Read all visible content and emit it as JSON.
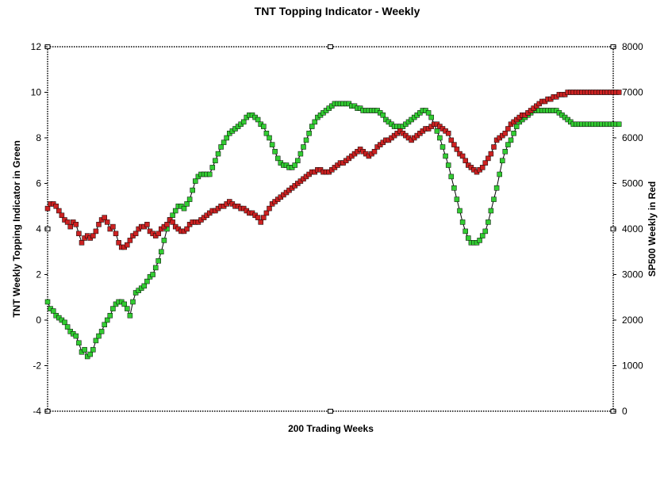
{
  "chart_data": {
    "type": "line",
    "title": "TNT Topping Indicator - Weekly",
    "xlabel": "200 Trading Weeks",
    "ylabel_left": "TNT Weekly Topping Indicator in Green",
    "ylabel_right": "SP500 Weekly in Red",
    "ylim_left": [
      -4,
      12
    ],
    "ylim_right": [
      0,
      8000
    ],
    "yticks_left": [
      12,
      10,
      8,
      6,
      4,
      2,
      0,
      -2,
      -4
    ],
    "yticks_right": [
      8000,
      7000,
      6000,
      5000,
      4000,
      3000,
      2000,
      1000,
      0
    ],
    "x_count": 200,
    "series": [
      {
        "name": "TNT Weekly Topping Indicator",
        "axis": "left",
        "color": "#33cc33",
        "values": [
          0.8,
          0.5,
          0.4,
          0.2,
          0.1,
          0,
          -0.1,
          -0.3,
          -0.5,
          -0.6,
          -0.7,
          -1.0,
          -1.4,
          -1.3,
          -1.6,
          -1.5,
          -1.3,
          -0.9,
          -0.7,
          -0.5,
          -0.2,
          0,
          0.2,
          0.5,
          0.7,
          0.8,
          0.8,
          0.7,
          0.5,
          0.2,
          0.8,
          1.2,
          1.3,
          1.4,
          1.5,
          1.7,
          1.9,
          2.0,
          2.3,
          2.6,
          3.0,
          3.5,
          4.0,
          4.4,
          4.6,
          4.8,
          5.0,
          5.0,
          4.9,
          5.1,
          5.3,
          5.7,
          6.1,
          6.3,
          6.4,
          6.4,
          6.4,
          6.4,
          6.7,
          7.0,
          7.3,
          7.6,
          7.8,
          8.0,
          8.2,
          8.3,
          8.4,
          8.5,
          8.6,
          8.7,
          8.9,
          9.0,
          9.0,
          8.9,
          8.8,
          8.6,
          8.5,
          8.2,
          8.0,
          7.7,
          7.4,
          7.1,
          6.9,
          6.8,
          6.8,
          6.7,
          6.7,
          6.8,
          7.0,
          7.3,
          7.6,
          7.9,
          8.2,
          8.5,
          8.7,
          8.9,
          9.0,
          9.1,
          9.2,
          9.3,
          9.4,
          9.5,
          9.5,
          9.5,
          9.5,
          9.5,
          9.5,
          9.4,
          9.4,
          9.3,
          9.3,
          9.2,
          9.2,
          9.2,
          9.2,
          9.2,
          9.2,
          9.1,
          9.0,
          8.8,
          8.7,
          8.6,
          8.5,
          8.5,
          8.5,
          8.5,
          8.6,
          8.7,
          8.8,
          8.9,
          9.0,
          9.1,
          9.2,
          9.2,
          9.1,
          8.9,
          8.6,
          8.3,
          8.0,
          7.6,
          7.2,
          6.8,
          6.3,
          5.8,
          5.3,
          4.8,
          4.3,
          3.9,
          3.6,
          3.4,
          3.4,
          3.4,
          3.5,
          3.7,
          3.9,
          4.3,
          4.8,
          5.3,
          5.8,
          6.4,
          7.0,
          7.4,
          7.7,
          7.9,
          8.2,
          8.5,
          8.7,
          8.8,
          8.9,
          9.0,
          9.1,
          9.2,
          9.2,
          9.2,
          9.2,
          9.2,
          9.2,
          9.2,
          9.2,
          9.2,
          9.1,
          9.0,
          8.9,
          8.8,
          8.7,
          8.6,
          8.6,
          8.6,
          8.6,
          8.6,
          8.6,
          8.6,
          8.6,
          8.6,
          8.6,
          8.6,
          8.6,
          8.6,
          8.6,
          8.6,
          8.6,
          8.6
        ]
      },
      {
        "name": "SP500 Weekly",
        "axis": "right",
        "color": "#cc2222",
        "values": [
          4450,
          4550,
          4550,
          4500,
          4400,
          4300,
          4200,
          4150,
          4050,
          4150,
          4100,
          3900,
          3700,
          3800,
          3850,
          3800,
          3850,
          3950,
          4100,
          4200,
          4250,
          4150,
          4000,
          4050,
          3900,
          3700,
          3600,
          3600,
          3650,
          3750,
          3850,
          3900,
          4000,
          4050,
          4050,
          4100,
          3950,
          3900,
          3850,
          3900,
          4000,
          4050,
          4100,
          4200,
          4150,
          4050,
          4000,
          3950,
          3950,
          4000,
          4100,
          4150,
          4150,
          4150,
          4200,
          4250,
          4300,
          4350,
          4400,
          4400,
          4450,
          4500,
          4500,
          4550,
          4600,
          4550,
          4500,
          4500,
          4450,
          4450,
          4400,
          4350,
          4350,
          4300,
          4250,
          4150,
          4250,
          4350,
          4450,
          4550,
          4600,
          4650,
          4700,
          4750,
          4800,
          4850,
          4900,
          4950,
          5000,
          5050,
          5100,
          5150,
          5200,
          5250,
          5250,
          5300,
          5300,
          5250,
          5250,
          5250,
          5300,
          5350,
          5400,
          5450,
          5450,
          5500,
          5550,
          5600,
          5650,
          5700,
          5750,
          5700,
          5650,
          5600,
          5650,
          5700,
          5800,
          5850,
          5900,
          5950,
          5950,
          6000,
          6050,
          6100,
          6150,
          6100,
          6050,
          6000,
          5950,
          6000,
          6050,
          6100,
          6150,
          6200,
          6200,
          6250,
          6300,
          6300,
          6250,
          6200,
          6150,
          6100,
          5950,
          5850,
          5750,
          5650,
          5600,
          5500,
          5400,
          5350,
          5300,
          5250,
          5300,
          5350,
          5450,
          5550,
          5650,
          5800,
          5950,
          6000,
          6050,
          6100,
          6200,
          6300,
          6350,
          6400,
          6450,
          6500,
          6500,
          6550,
          6600,
          6650,
          6700,
          6750,
          6800,
          6800,
          6850,
          6850,
          6900,
          6900,
          6950,
          6950,
          6950,
          7000,
          7000,
          7000,
          7000,
          7000,
          7000,
          7000,
          7000,
          7000,
          7000,
          7000,
          7000,
          7000,
          7000,
          7000,
          7000,
          7000,
          7000,
          7000
        ]
      }
    ]
  }
}
